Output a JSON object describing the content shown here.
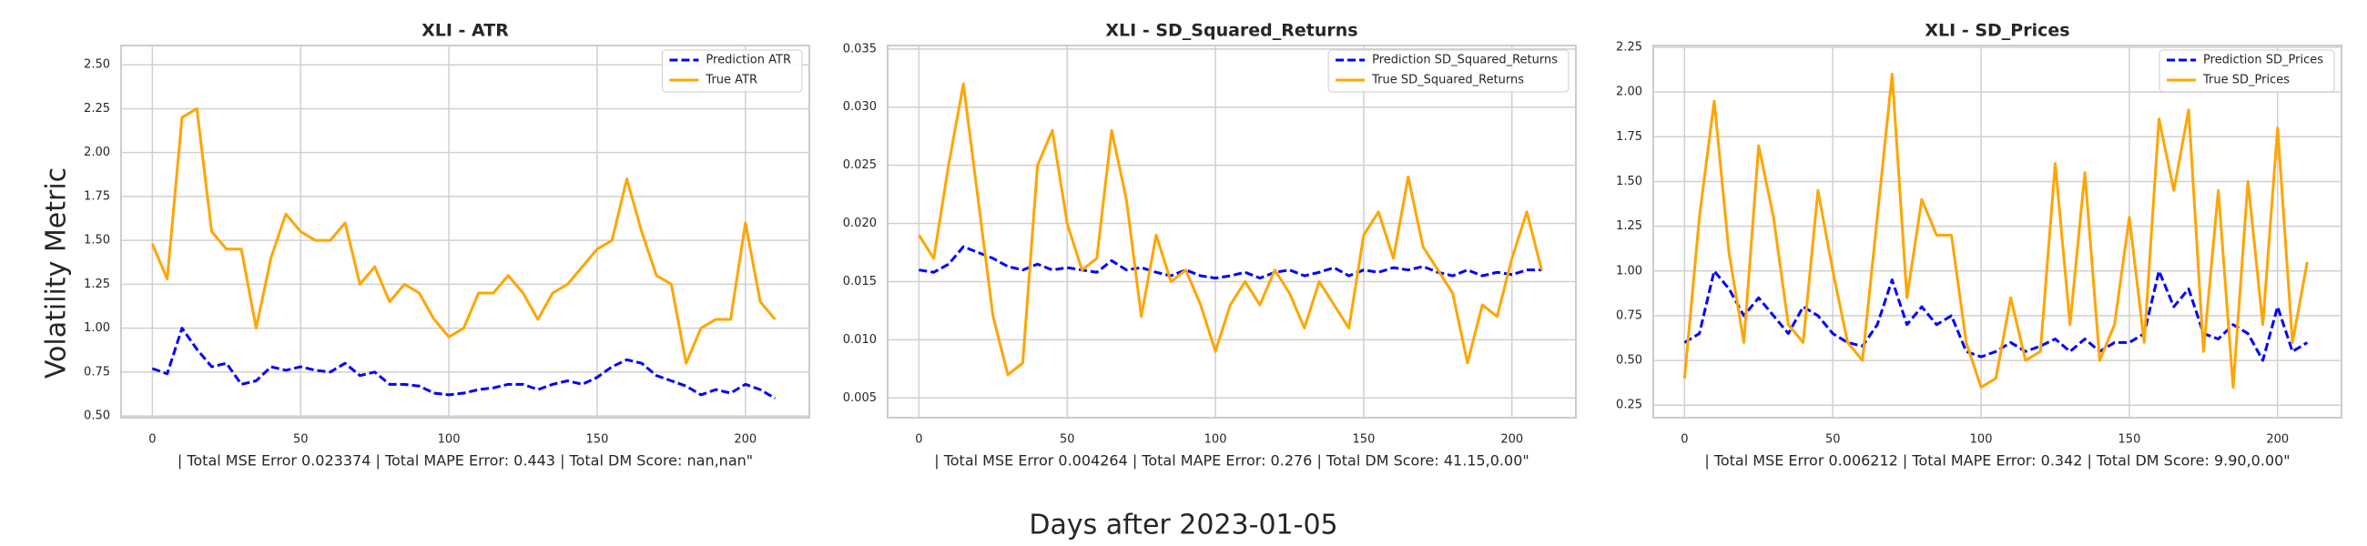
{
  "figure": {
    "xlabel": "Days after 2023-01-05",
    "ylabel": "Volatility Metric"
  },
  "chart_data": [
    {
      "type": "line",
      "title": "XLI - ATR",
      "subtitle": "| Total MSE Error 0.023374 | Total MAPE Error: 0.443 | Total DM Score: nan,nan\"",
      "x": [
        0,
        5,
        10,
        15,
        20,
        25,
        30,
        35,
        40,
        45,
        50,
        55,
        60,
        65,
        70,
        75,
        80,
        85,
        90,
        95,
        100,
        105,
        110,
        115,
        120,
        125,
        130,
        135,
        140,
        145,
        150,
        155,
        160,
        165,
        170,
        175,
        180,
        185,
        190,
        195,
        200,
        205,
        210
      ],
      "series": [
        {
          "name": "Prediction ATR",
          "color": "#0000ff",
          "linestyle": "dashed",
          "values": [
            0.77,
            0.74,
            1.0,
            0.88,
            0.78,
            0.8,
            0.68,
            0.7,
            0.78,
            0.76,
            0.78,
            0.76,
            0.75,
            0.8,
            0.73,
            0.75,
            0.68,
            0.68,
            0.67,
            0.63,
            0.62,
            0.63,
            0.65,
            0.66,
            0.68,
            0.68,
            0.65,
            0.68,
            0.7,
            0.68,
            0.72,
            0.78,
            0.82,
            0.8,
            0.73,
            0.7,
            0.67,
            0.62,
            0.65,
            0.63,
            0.68,
            0.65,
            0.6
          ]
        },
        {
          "name": "True ATR",
          "color": "#ffa500",
          "linestyle": "solid",
          "values": [
            1.48,
            1.28,
            2.2,
            2.25,
            1.55,
            1.45,
            1.45,
            1.0,
            1.4,
            1.65,
            1.55,
            1.5,
            1.5,
            1.6,
            1.25,
            1.35,
            1.15,
            1.25,
            1.2,
            1.05,
            0.95,
            1.0,
            1.2,
            1.2,
            1.3,
            1.2,
            1.05,
            1.2,
            1.25,
            1.35,
            1.45,
            1.5,
            1.85,
            1.55,
            1.3,
            1.25,
            0.8,
            1.0,
            1.05,
            1.05,
            1.6,
            1.15,
            1.05
          ]
        }
      ],
      "xlim": [
        -10.55,
        221.55
      ],
      "xticks": [
        0,
        50,
        100,
        150,
        200
      ],
      "ylim": [
        0.49,
        2.61
      ],
      "yticks": [
        {
          "value": 0.5,
          "label": "0.50"
        },
        {
          "value": 0.75,
          "label": "0.75"
        },
        {
          "value": 1.0,
          "label": "1.00"
        },
        {
          "value": 1.25,
          "label": "1.25"
        },
        {
          "value": 1.5,
          "label": "1.50"
        },
        {
          "value": 1.75,
          "label": "1.75"
        },
        {
          "value": 2.0,
          "label": "2.00"
        },
        {
          "value": 2.25,
          "label": "2.25"
        },
        {
          "value": 2.5,
          "label": "2.50"
        }
      ],
      "grid": true,
      "legend": "upper right"
    },
    {
      "type": "line",
      "title": "XLI - SD_Squared_Returns",
      "subtitle": "| Total MSE Error 0.004264 | Total MAPE Error: 0.276 | Total DM Score: 41.15,0.00\"",
      "x": [
        0,
        5,
        10,
        15,
        20,
        25,
        30,
        35,
        40,
        45,
        50,
        55,
        60,
        65,
        70,
        75,
        80,
        85,
        90,
        95,
        100,
        105,
        110,
        115,
        120,
        125,
        130,
        135,
        140,
        145,
        150,
        155,
        160,
        165,
        170,
        175,
        180,
        185,
        190,
        195,
        200,
        205,
        210
      ],
      "series": [
        {
          "name": "Prediction SD_Squared_Returns",
          "color": "#0000ff",
          "linestyle": "dashed",
          "values": [
            0.016,
            0.0158,
            0.0165,
            0.018,
            0.0175,
            0.017,
            0.0163,
            0.016,
            0.0165,
            0.016,
            0.0162,
            0.016,
            0.0158,
            0.0168,
            0.016,
            0.0162,
            0.0158,
            0.0155,
            0.016,
            0.0155,
            0.0153,
            0.0155,
            0.0158,
            0.0153,
            0.0158,
            0.016,
            0.0155,
            0.0158,
            0.0162,
            0.0155,
            0.016,
            0.0158,
            0.0162,
            0.016,
            0.0163,
            0.0158,
            0.0155,
            0.016,
            0.0155,
            0.0158,
            0.0156,
            0.016,
            0.016
          ]
        },
        {
          "name": "True SD_Squared_Returns",
          "color": "#ffa500",
          "linestyle": "solid",
          "values": [
            0.019,
            0.017,
            0.025,
            0.032,
            0.022,
            0.012,
            0.007,
            0.008,
            0.025,
            0.028,
            0.02,
            0.016,
            0.017,
            0.028,
            0.022,
            0.012,
            0.019,
            0.015,
            0.016,
            0.013,
            0.009,
            0.013,
            0.015,
            0.013,
            0.016,
            0.014,
            0.011,
            0.015,
            0.013,
            0.011,
            0.019,
            0.021,
            0.017,
            0.024,
            0.018,
            0.016,
            0.014,
            0.008,
            0.013,
            0.012,
            0.017,
            0.021,
            0.016
          ]
        }
      ],
      "xlim": [
        -10.55,
        221.55
      ],
      "xticks": [
        0,
        50,
        100,
        150,
        200
      ],
      "ylim": [
        0.0033,
        0.0353
      ],
      "yticks": [
        0.005,
        {
          "value": 0.01,
          "label": "0.010"
        },
        0.015,
        {
          "value": 0.02,
          "label": "0.020"
        },
        0.025,
        {
          "value": 0.03,
          "label": "0.030"
        },
        0.035
      ],
      "grid": true,
      "legend": "upper right"
    },
    {
      "type": "line",
      "title": "XLI - SD_Prices",
      "subtitle": "| Total MSE Error 0.006212 | Total MAPE Error: 0.342 | Total DM Score: 9.90,0.00\"",
      "x": [
        0,
        5,
        10,
        15,
        20,
        25,
        30,
        35,
        40,
        45,
        50,
        55,
        60,
        65,
        70,
        75,
        80,
        85,
        90,
        95,
        100,
        105,
        110,
        115,
        120,
        125,
        130,
        135,
        140,
        145,
        150,
        155,
        160,
        165,
        170,
        175,
        180,
        185,
        190,
        195,
        200,
        205,
        210
      ],
      "series": [
        {
          "name": "Prediction SD_Prices",
          "color": "#0000ff",
          "linestyle": "dashed",
          "values": [
            0.6,
            0.65,
            1.0,
            0.9,
            0.75,
            0.85,
            0.75,
            0.65,
            0.8,
            0.75,
            0.65,
            0.6,
            0.58,
            0.7,
            0.95,
            0.7,
            0.8,
            0.7,
            0.75,
            0.55,
            0.52,
            0.55,
            0.6,
            0.55,
            0.58,
            0.62,
            0.55,
            0.62,
            0.55,
            0.6,
            0.6,
            0.65,
            1.0,
            0.8,
            0.9,
            0.65,
            0.62,
            0.7,
            0.65,
            0.5,
            0.8,
            0.55,
            0.6
          ]
        },
        {
          "name": "True SD_Prices",
          "color": "#ffa500",
          "linestyle": "solid",
          "values": [
            0.4,
            1.3,
            1.95,
            1.1,
            0.6,
            1.7,
            1.3,
            0.7,
            0.6,
            1.45,
            1.0,
            0.6,
            0.5,
            1.3,
            2.1,
            0.85,
            1.4,
            1.2,
            1.2,
            0.6,
            0.35,
            0.4,
            0.85,
            0.5,
            0.55,
            1.6,
            0.7,
            1.55,
            0.5,
            0.7,
            1.3,
            0.6,
            1.85,
            1.45,
            1.9,
            0.55,
            1.45,
            0.35,
            1.5,
            0.7,
            1.8,
            0.6,
            1.05
          ]
        }
      ],
      "xlim": [
        -10.55,
        221.55
      ],
      "xticks": [
        0,
        50,
        100,
        150,
        200
      ],
      "ylim": [
        0.18,
        2.26
      ],
      "yticks": [
        0.25,
        {
          "value": 0.5,
          "label": "0.50"
        },
        0.75,
        {
          "value": 1.0,
          "label": "1.00"
        },
        1.25,
        {
          "value": 1.5,
          "label": "1.50"
        },
        1.75,
        {
          "value": 2.0,
          "label": "2.00"
        },
        2.25
      ],
      "grid": true,
      "legend": "upper right"
    }
  ]
}
